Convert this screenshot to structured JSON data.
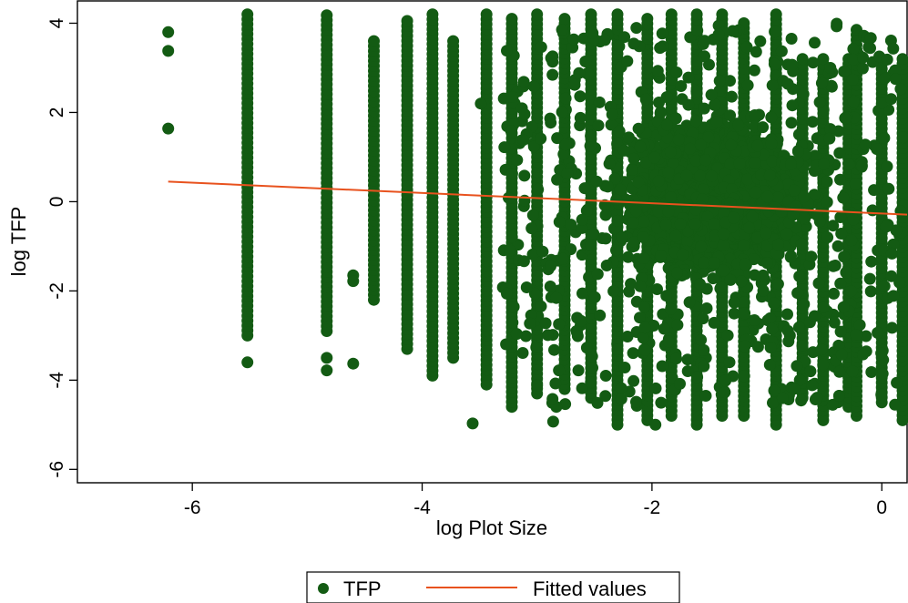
{
  "chart_data": {
    "type": "scatter",
    "xlabel": "log Plot Size",
    "ylabel": "log TFP",
    "xlim": [
      -7.0,
      0.22
    ],
    "ylim": [
      -6.3,
      4.5
    ],
    "xticks": [
      -6,
      -4,
      -2,
      0
    ],
    "yticks": [
      -6,
      -4,
      -2,
      0,
      2,
      4
    ],
    "xtick_labels": [
      "-6",
      "-4",
      "-2",
      "0"
    ],
    "ytick_labels": [
      "-6",
      "-4",
      "-2",
      "0",
      "2",
      "4"
    ],
    "grid": false,
    "legend_position": "bottom-center",
    "series": [
      {
        "name": "TFP",
        "kind": "scatter",
        "color": "#135b13",
        "isolated_points": [
          {
            "x": -6.21,
            "y": 3.8
          },
          {
            "x": -6.21,
            "y": 3.38
          },
          {
            "x": -6.21,
            "y": 1.64
          },
          {
            "x": -4.6,
            "y": -1.65
          },
          {
            "x": -4.6,
            "y": -1.78
          },
          {
            "x": -4.6,
            "y": -3.63
          },
          {
            "x": -3.56,
            "y": -4.97
          },
          {
            "x": -2.86,
            "y": -4.93
          },
          {
            "x": -1.97,
            "y": -5.0
          },
          {
            "x": -3.0,
            "y": -4.12
          },
          {
            "x": -2.81,
            "y": -3.78
          },
          {
            "x": -3.49,
            "y": 2.2
          }
        ],
        "columns": [
          {
            "x": -5.52,
            "ymin": -3.0,
            "ymax": 4.2,
            "outliers": [
              -3.6
            ]
          },
          {
            "x": -4.83,
            "ymin": -2.9,
            "ymax": 4.18,
            "outliers": [
              -3.5,
              -3.78
            ]
          },
          {
            "x": -4.42,
            "ymin": -2.2,
            "ymax": 3.6,
            "outliers": []
          },
          {
            "x": -4.13,
            "ymin": -3.3,
            "ymax": 4.05,
            "outliers": []
          },
          {
            "x": -3.91,
            "ymin": -3.9,
            "ymax": 4.2,
            "outliers": []
          },
          {
            "x": -3.73,
            "ymin": -3.5,
            "ymax": 3.6,
            "outliers": []
          },
          {
            "x": -3.44,
            "ymin": -4.1,
            "ymax": 4.2,
            "outliers": []
          },
          {
            "x": -3.22,
            "ymin": -4.6,
            "ymax": 4.1,
            "outliers": []
          },
          {
            "x": -3.0,
            "ymin": -4.3,
            "ymax": 4.2,
            "outliers": []
          },
          {
            "x": -2.76,
            "ymin": -4.2,
            "ymax": 4.1,
            "outliers": []
          },
          {
            "x": -2.53,
            "ymin": -4.4,
            "ymax": 4.2,
            "outliers": []
          },
          {
            "x": -2.3,
            "ymin": -5.0,
            "ymax": 4.2,
            "outliers": []
          },
          {
            "x": -2.04,
            "ymin": -4.9,
            "ymax": 4.1,
            "outliers": []
          },
          {
            "x": -1.83,
            "ymin": -4.8,
            "ymax": 4.2,
            "outliers": []
          },
          {
            "x": -1.61,
            "ymin": -5.0,
            "ymax": 4.2,
            "outliers": []
          },
          {
            "x": -1.39,
            "ymin": -4.8,
            "ymax": 4.2,
            "outliers": []
          },
          {
            "x": -1.2,
            "ymin": -4.8,
            "ymax": 4.0,
            "outliers": []
          },
          {
            "x": -0.92,
            "ymin": -5.0,
            "ymax": 4.2,
            "outliers": []
          },
          {
            "x": -0.69,
            "ymin": -4.4,
            "ymax": 3.2,
            "outliers": []
          },
          {
            "x": -0.51,
            "ymin": -4.9,
            "ymax": 3.2,
            "outliers": []
          },
          {
            "x": -0.29,
            "ymin": -4.6,
            "ymax": 3.2,
            "outliers": []
          },
          {
            "x": -0.22,
            "ymin": -4.8,
            "ymax": 3.85,
            "outliers": []
          },
          {
            "x": 0.0,
            "ymin": -4.5,
            "ymax": 3.2,
            "outliers": []
          },
          {
            "x": 0.18,
            "ymin": -4.9,
            "ymax": 3.2,
            "outliers": []
          }
        ]
      },
      {
        "name": "Fitted values",
        "kind": "line",
        "color": "#e8521e",
        "x": [
          -6.21,
          0.22
        ],
        "y": [
          0.45,
          -0.29
        ]
      }
    ]
  },
  "legend": {
    "items": [
      {
        "label": "TFP",
        "marker": "dot",
        "color": "#135b13"
      },
      {
        "label": "Fitted values",
        "marker": "line",
        "color": "#e8521e"
      }
    ]
  }
}
